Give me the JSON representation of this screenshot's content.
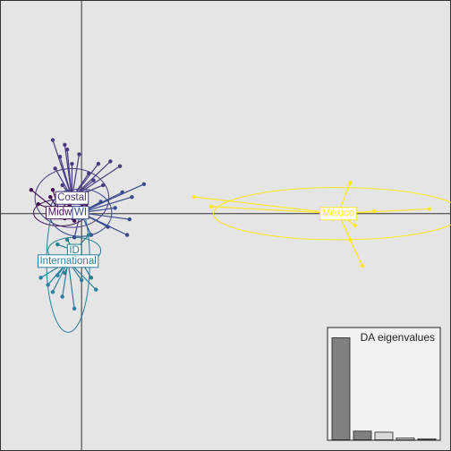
{
  "chart_data": {
    "type": "scatter",
    "subtype": "DAPC scatterplot (discriminant analysis of principal components)",
    "title": "",
    "xlabel": "",
    "ylabel": "",
    "xlim": [
      -1.7,
      7.7
    ],
    "ylim": [
      -5.0,
      4.5
    ],
    "axes_cross_at": [
      0,
      0
    ],
    "grid": false,
    "background": "#e5e5e5",
    "groups": [
      {
        "name": "Costal",
        "color": "#4b3a80",
        "centroid": [
          -0.2,
          0.33
        ],
        "ellipse": {
          "rx": 0.77,
          "ry": 0.62,
          "angle": 0
        },
        "points": [
          [
            -0.6,
            1.55
          ],
          [
            -0.45,
            1.2
          ],
          [
            -0.3,
            1.35
          ],
          [
            -0.55,
            0.95
          ],
          [
            0.35,
            1.05
          ],
          [
            0.6,
            1.1
          ],
          [
            0.8,
            1.0
          ],
          [
            0.25,
            0.7
          ],
          [
            -0.05,
            1.25
          ],
          [
            0.15,
            0.85
          ],
          [
            -0.2,
            1.05
          ],
          [
            0.45,
            0.6
          ],
          [
            -0.4,
            0.6
          ],
          [
            0.1,
            0.45
          ],
          [
            -0.35,
            1.45
          ]
        ]
      },
      {
        "name": "Midwest",
        "color": "#431256",
        "centroid": [
          -0.45,
          0.02
        ],
        "ellipse": {
          "rx": 0.55,
          "ry": 0.28,
          "angle": 0
        },
        "points": [
          [
            -1.05,
            0.5
          ],
          [
            -0.65,
            0.35
          ],
          [
            -0.25,
            0.18
          ],
          [
            -0.9,
            0.2
          ],
          [
            -0.15,
            -0.15
          ],
          [
            -0.35,
            -0.1
          ],
          [
            0.1,
            0.2
          ],
          [
            -0.6,
            0.5
          ],
          [
            -0.2,
            0.42
          ],
          [
            0.05,
            -0.05
          ]
        ]
      },
      {
        "name": "WI",
        "color": "#3a4b8f",
        "centroid": [
          -0.02,
          0.02
        ],
        "ellipse": {
          "rx": 0.65,
          "ry": 0.5,
          "angle": 0
        },
        "points": [
          [
            1.3,
            0.62
          ],
          [
            1.05,
            0.35
          ],
          [
            1.0,
            -0.12
          ],
          [
            0.95,
            -0.45
          ],
          [
            0.55,
            -0.28
          ],
          [
            -0.15,
            -0.5
          ],
          [
            0.2,
            -0.45
          ],
          [
            0.7,
            0.12
          ],
          [
            0.85,
            0.45
          ],
          [
            0.4,
            0.25
          ]
        ]
      },
      {
        "name": "ID",
        "color": "#277f8e",
        "centroid": [
          -0.15,
          -0.78
        ],
        "ellipse": {
          "rx": 0.55,
          "ry": 0.28,
          "angle": 0
        },
        "points": [
          [
            -0.35,
            -1.25
          ],
          [
            0.2,
            -1.35
          ],
          [
            -0.5,
            -0.65
          ],
          [
            0.15,
            -0.45
          ],
          [
            -0.1,
            -1.0
          ],
          [
            -0.3,
            -0.55
          ],
          [
            0.05,
            -1.1
          ],
          [
            -0.2,
            -0.9
          ]
        ]
      },
      {
        "name": "International",
        "color": "#2c7fa0",
        "centroid": [
          -0.28,
          -1.0
        ],
        "ellipse": {
          "rx": 0.45,
          "ry": 1.5,
          "angle": 0
        },
        "points": [
          [
            -0.85,
            -1.35
          ],
          [
            -0.6,
            -1.65
          ],
          [
            -0.4,
            -1.75
          ],
          [
            -0.15,
            -2.0
          ],
          [
            0.3,
            -1.6
          ],
          [
            -0.5,
            -1.3
          ],
          [
            0.0,
            -1.4
          ],
          [
            -0.7,
            -1.5
          ]
        ]
      },
      {
        "name": "Mexico",
        "color": "#fde725",
        "centroid": [
          5.35,
          0.0
        ],
        "ellipse": {
          "rx": 2.6,
          "ry": 0.55,
          "angle": 0
        },
        "points": [
          [
            2.35,
            0.35
          ],
          [
            2.7,
            0.15
          ],
          [
            5.6,
            0.65
          ],
          [
            5.7,
            -0.25
          ],
          [
            5.6,
            -0.55
          ],
          [
            5.85,
            -1.1
          ],
          [
            7.25,
            0.1
          ],
          [
            6.1,
            0.05
          ]
        ]
      }
    ],
    "label_order": [
      "Costal",
      "Midwest",
      "WI",
      "ID",
      "International",
      "Mexico"
    ],
    "label_text": {
      "Costal": "Costal",
      "Midwest": "Midw",
      "WI": "WI",
      "ID": "ID",
      "International": "International",
      "Mexico": "Mexico"
    },
    "inset": {
      "title": "DA eigenvalues",
      "type": "bar",
      "values": [
        100,
        8.5,
        7.5,
        1.8,
        1.0
      ],
      "fill": [
        "#808080",
        "#808080",
        "#d9d9d9",
        "#d9d9d9",
        "#d9d9d9"
      ]
    }
  }
}
